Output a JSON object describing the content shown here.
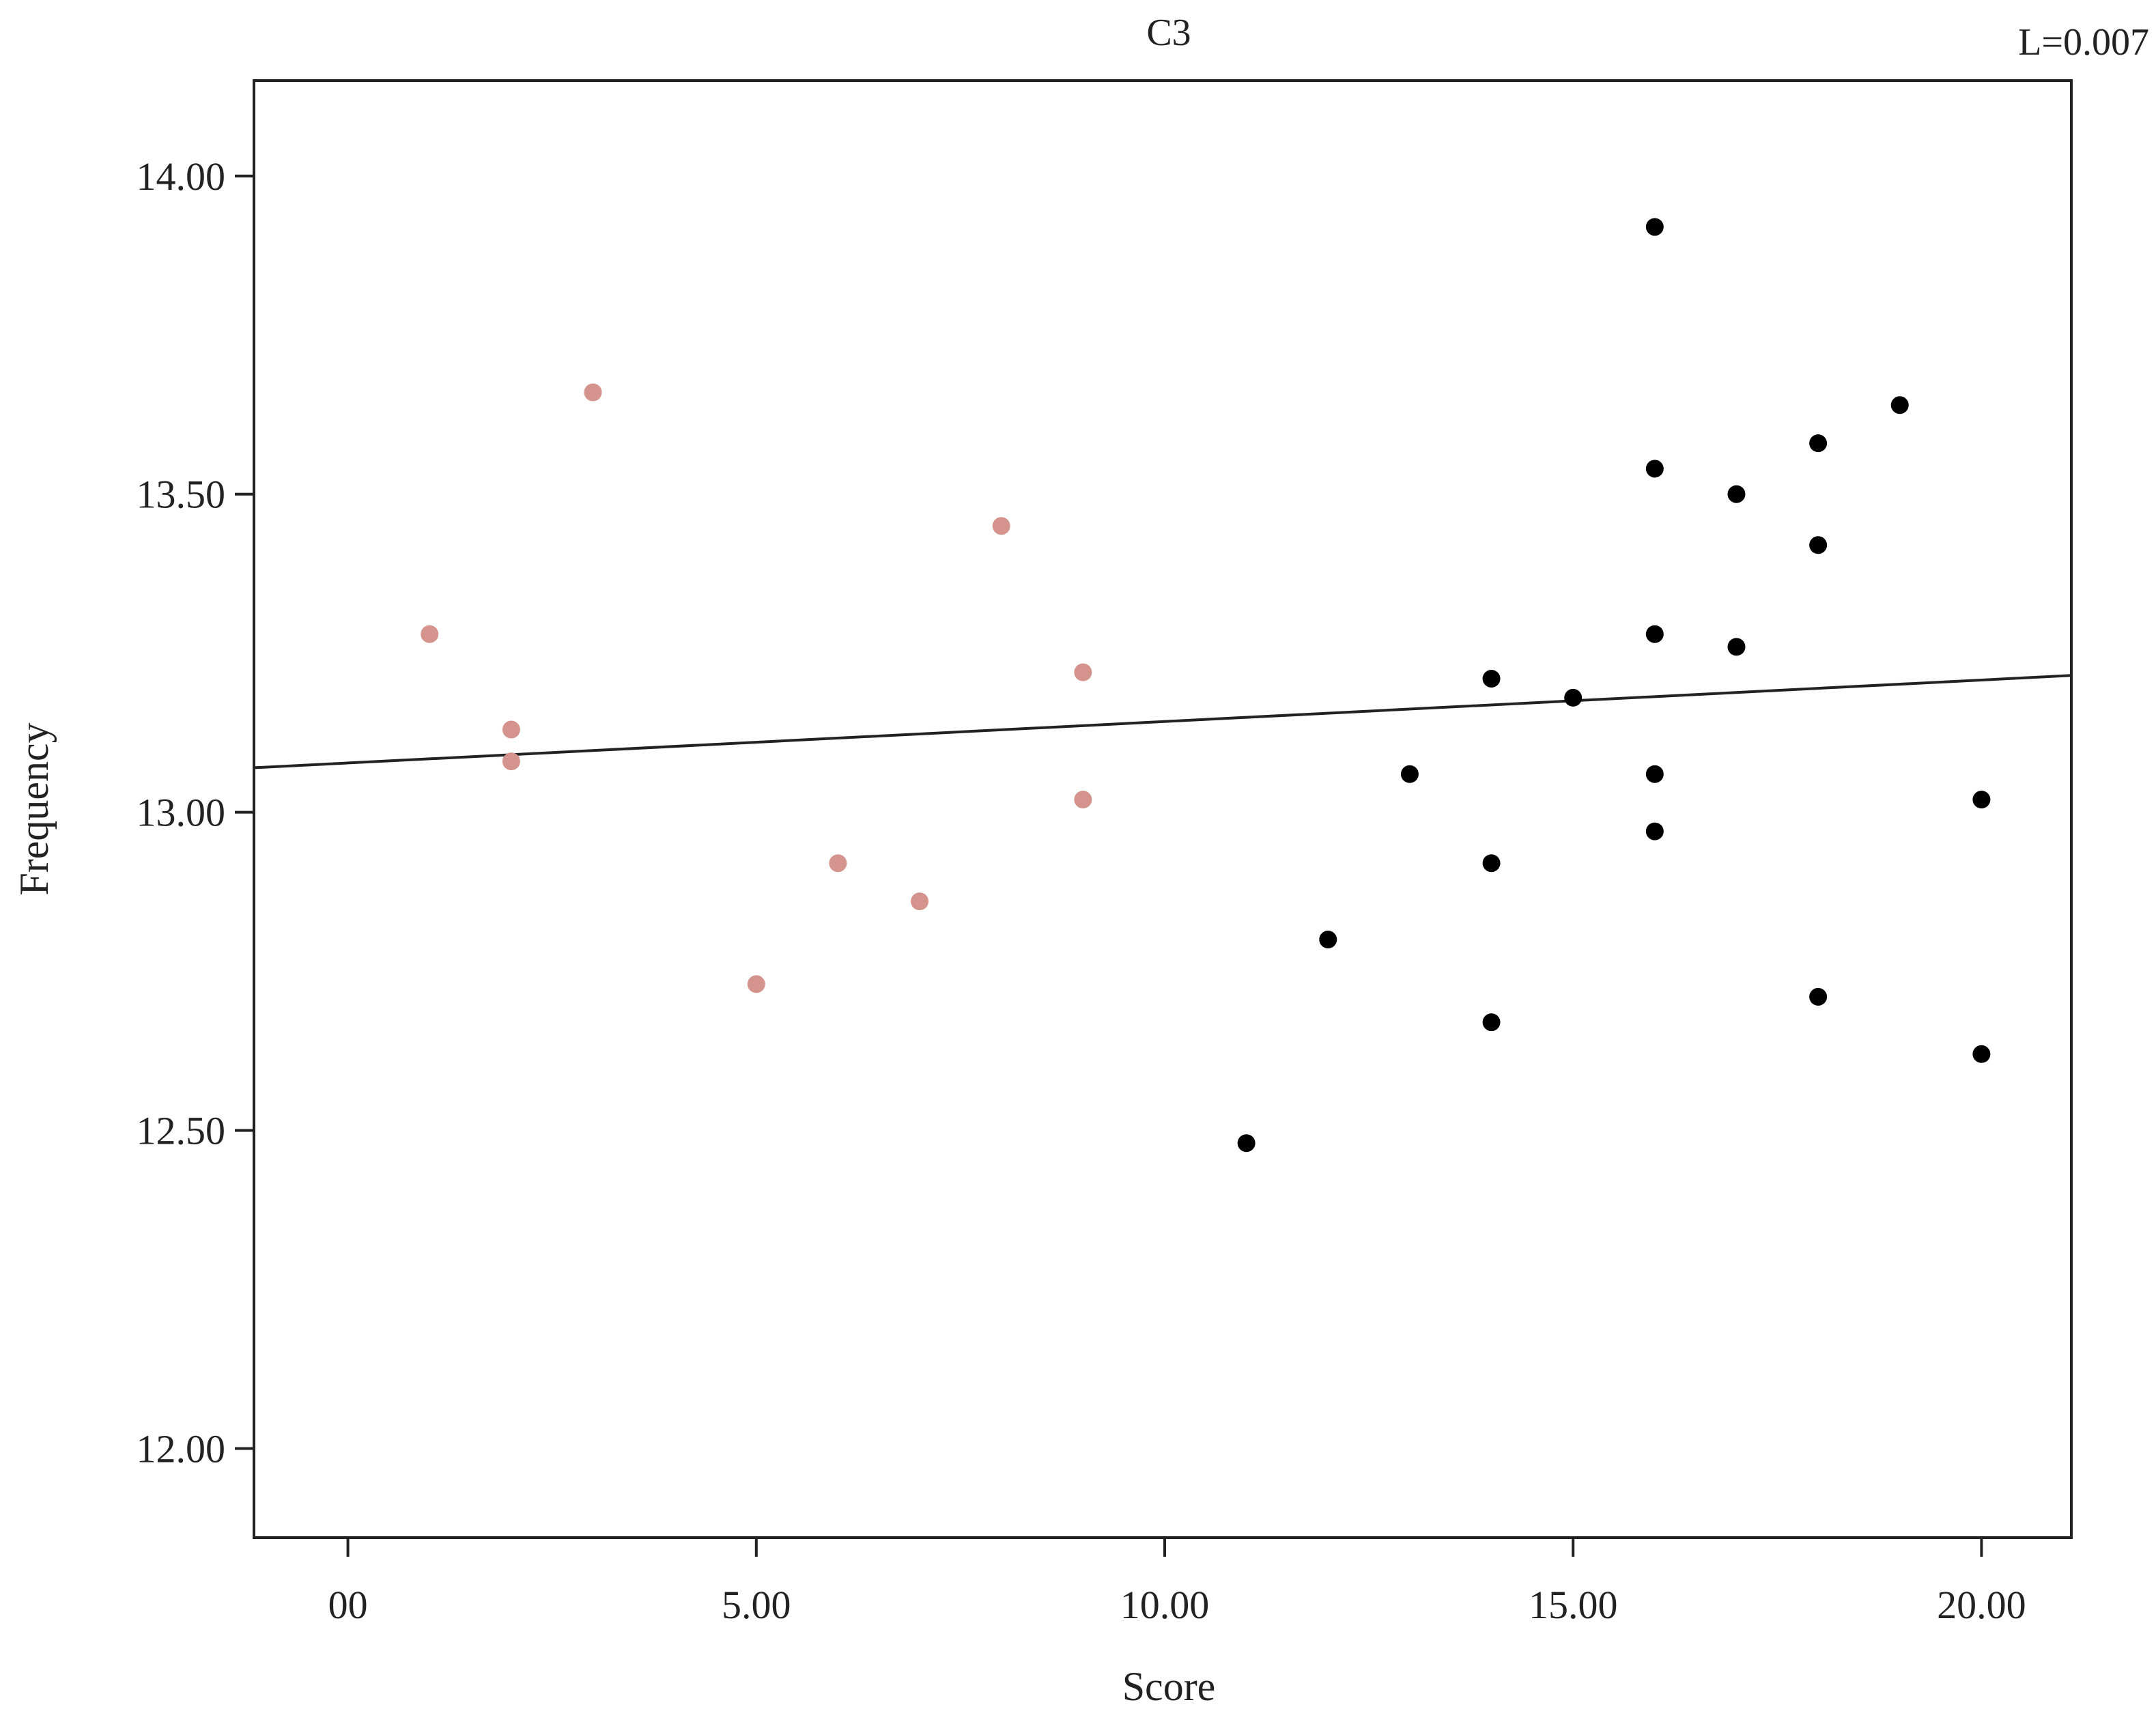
{
  "chart_data": {
    "type": "scatter",
    "title": "C3",
    "annotation": "L=0.007",
    "xlabel": "Score",
    "ylabel": "Frequency",
    "xlim": [
      -1.15,
      21.1
    ],
    "ylim": [
      11.86,
      14.15
    ],
    "x_ticks": [
      0,
      5,
      10,
      15,
      20
    ],
    "x_tick_labels": [
      "00",
      "5.00",
      "10.00",
      "15.00",
      "20.00"
    ],
    "y_ticks": [
      12.0,
      12.5,
      13.0,
      13.5,
      14.0
    ],
    "y_tick_labels": [
      "12.00",
      "12.50",
      "13.00",
      "13.50",
      "14.00"
    ],
    "grid": false,
    "series": [
      {
        "color": "#d4938c",
        "points": [
          {
            "x": 1,
            "y": 13.28
          },
          {
            "x": 2,
            "y": 13.13
          },
          {
            "x": 2,
            "y": 13.08
          },
          {
            "x": 3,
            "y": 13.66
          },
          {
            "x": 5,
            "y": 12.73
          },
          {
            "x": 6,
            "y": 12.92
          },
          {
            "x": 7,
            "y": 12.86
          },
          {
            "x": 8,
            "y": 13.45
          },
          {
            "x": 9,
            "y": 13.22
          },
          {
            "x": 9,
            "y": 13.02
          }
        ]
      },
      {
        "color": "#000000",
        "points": [
          {
            "x": 11,
            "y": 12.48
          },
          {
            "x": 12,
            "y": 12.8
          },
          {
            "x": 13,
            "y": 13.06
          },
          {
            "x": 14,
            "y": 13.21
          },
          {
            "x": 14,
            "y": 12.92
          },
          {
            "x": 14,
            "y": 12.67
          },
          {
            "x": 15,
            "y": 13.18
          },
          {
            "x": 16,
            "y": 13.92
          },
          {
            "x": 16,
            "y": 13.54
          },
          {
            "x": 16,
            "y": 13.28
          },
          {
            "x": 16,
            "y": 13.06
          },
          {
            "x": 16,
            "y": 12.97
          },
          {
            "x": 17,
            "y": 13.5
          },
          {
            "x": 17,
            "y": 13.26
          },
          {
            "x": 18,
            "y": 13.58
          },
          {
            "x": 18,
            "y": 13.42
          },
          {
            "x": 18,
            "y": 12.71
          },
          {
            "x": 19,
            "y": 13.64
          },
          {
            "x": 20,
            "y": 13.02
          },
          {
            "x": 20,
            "y": 12.62
          }
        ]
      }
    ],
    "fit_line": {
      "x": [
        -1.15,
        21.1
      ],
      "y": [
        13.07,
        13.215
      ]
    },
    "colors": {
      "axis": "#222222",
      "fit_line": "#222222"
    }
  }
}
